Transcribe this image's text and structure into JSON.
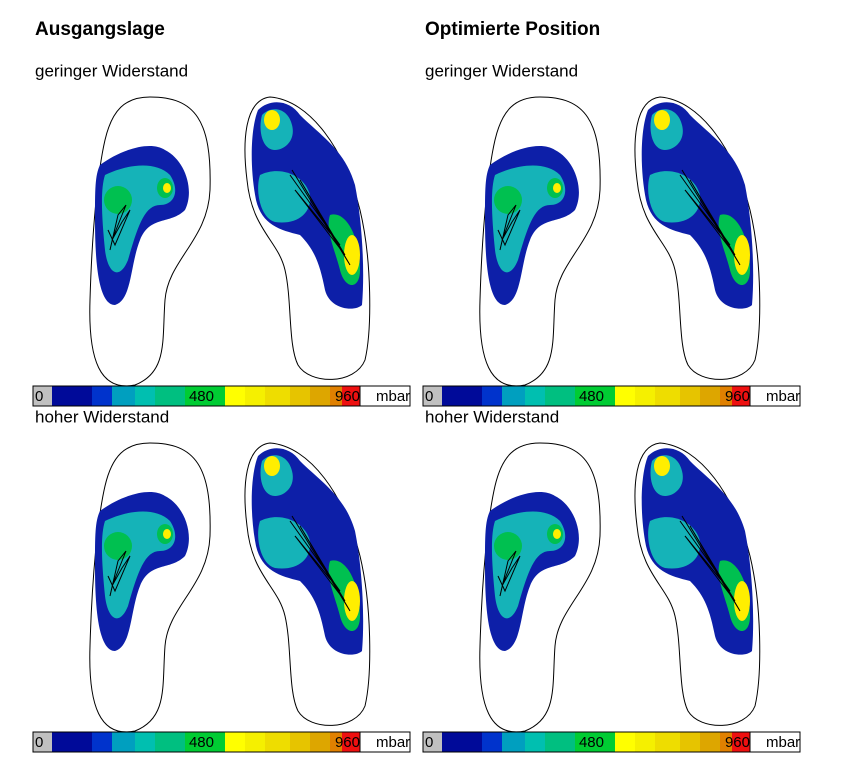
{
  "columns": [
    {
      "title": "Ausgangslage"
    },
    {
      "title": "Optimierte Position"
    }
  ],
  "panels": [
    {
      "subtitle": "geringer Widerstand",
      "scale": {
        "min": 0,
        "mid": 480,
        "max": 960,
        "unit": "mbar"
      }
    },
    {
      "subtitle": "geringer Widerstand",
      "scale": {
        "min": 0,
        "mid": 480,
        "max": 960,
        "unit": "mbar"
      }
    },
    {
      "subtitle": "hoher Widerstand",
      "scale": {
        "min": 0,
        "mid": 480,
        "max": 960,
        "unit": "mbar"
      }
    },
    {
      "subtitle": "hoher Widerstand",
      "scale": {
        "min": 0,
        "mid": 480,
        "max": 960,
        "unit": "mbar"
      }
    }
  ]
}
